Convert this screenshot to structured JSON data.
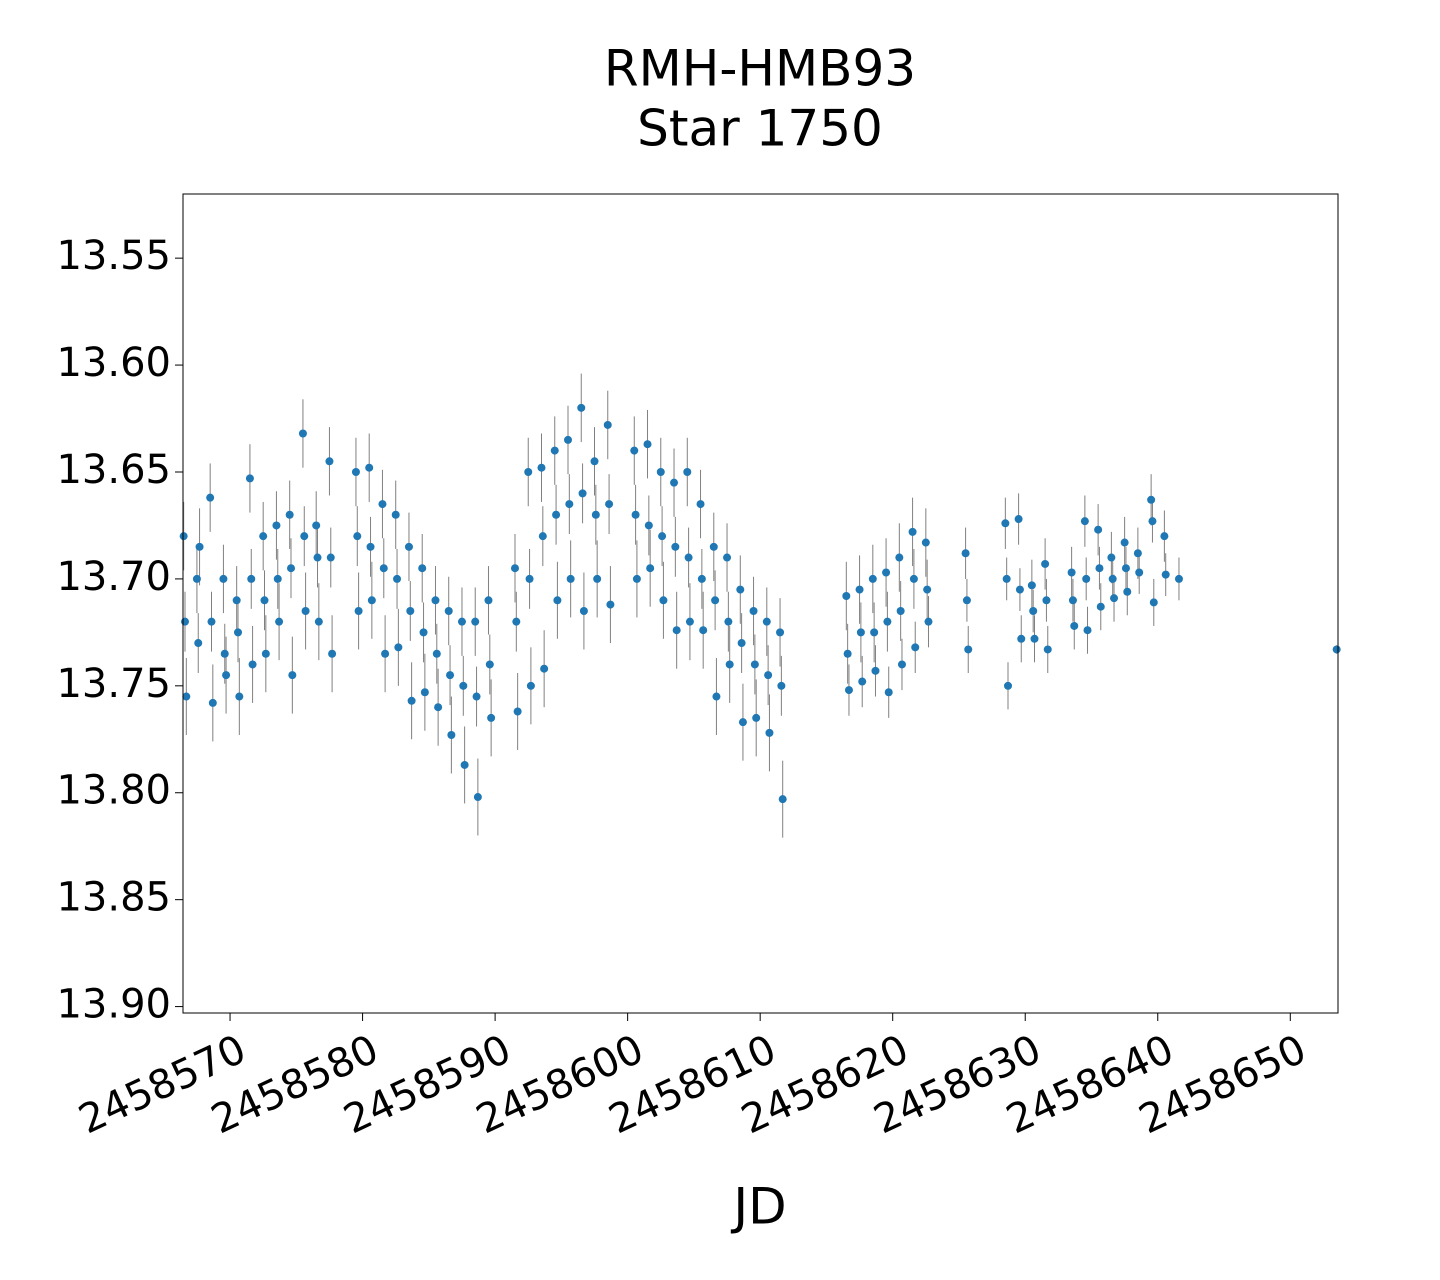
{
  "chart_data": {
    "type": "errorbar-scatter",
    "title": "RMH-HMB93",
    "subtitle": "Star 1750",
    "x_label": "JD",
    "xlim": [
      2458566.45,
      2458653.6
    ],
    "ylim": [
      13.903,
      13.52
    ],
    "y_inverted": true,
    "xticks": [
      2458570,
      2458580,
      2458590,
      2458600,
      2458610,
      2458620,
      2458630,
      2458640,
      2458650
    ],
    "yticks": [
      13.55,
      {
        "value": 13.6,
        "label": "13.60"
      },
      13.65,
      {
        "value": 13.7,
        "label": "13.70"
      },
      13.75,
      {
        "value": 13.8,
        "label": "13.80"
      },
      13.85,
      {
        "value": 13.9,
        "label": "13.90"
      }
    ],
    "grid": false,
    "series": [
      {
        "color": "#1f77b4",
        "error_color": "#808080",
        "x": [
          2458566.5,
          2458566.6,
          2458566.7,
          2458567.5,
          2458567.6,
          2458567.7,
          2458568.5,
          2458568.6,
          2458568.7,
          2458569.5,
          2458569.6,
          2458569.7,
          2458570.5,
          2458570.6,
          2458570.7,
          2458571.5,
          2458571.6,
          2458571.7,
          2458572.5,
          2458572.6,
          2458572.7,
          2458573.5,
          2458573.6,
          2458573.7,
          2458574.5,
          2458574.6,
          2458574.7,
          2458575.5,
          2458575.6,
          2458575.7,
          2458576.5,
          2458576.6,
          2458576.7,
          2458577.5,
          2458577.6,
          2458577.7,
          2458579.5,
          2458579.6,
          2458579.7,
          2458580.5,
          2458580.6,
          2458580.7,
          2458581.5,
          2458581.6,
          2458581.7,
          2458582.5,
          2458582.6,
          2458582.7,
          2458583.5,
          2458583.6,
          2458583.7,
          2458584.5,
          2458584.6,
          2458584.7,
          2458585.5,
          2458585.6,
          2458585.7,
          2458586.5,
          2458586.6,
          2458586.7,
          2458587.5,
          2458587.6,
          2458587.7,
          2458588.5,
          2458588.6,
          2458588.7,
          2458589.5,
          2458589.6,
          2458589.7,
          2458591.5,
          2458591.6,
          2458591.7,
          2458592.5,
          2458592.6,
          2458592.7,
          2458593.5,
          2458593.6,
          2458593.7,
          2458594.5,
          2458594.6,
          2458594.7,
          2458595.5,
          2458595.6,
          2458595.7,
          2458596.5,
          2458596.6,
          2458596.7,
          2458597.5,
          2458597.6,
          2458597.7,
          2458598.5,
          2458598.6,
          2458598.7,
          2458600.5,
          2458600.6,
          2458600.7,
          2458601.5,
          2458601.6,
          2458601.7,
          2458602.5,
          2458602.6,
          2458602.7,
          2458603.5,
          2458603.6,
          2458603.7,
          2458604.5,
          2458604.6,
          2458604.7,
          2458605.5,
          2458605.6,
          2458605.7,
          2458606.5,
          2458606.6,
          2458606.7,
          2458607.5,
          2458607.6,
          2458607.7,
          2458608.5,
          2458608.6,
          2458608.7,
          2458609.5,
          2458609.6,
          2458609.7,
          2458610.5,
          2458610.6,
          2458610.7,
          2458611.5,
          2458611.6,
          2458611.7,
          2458616.5,
          2458616.6,
          2458616.7,
          2458617.5,
          2458617.6,
          2458617.7,
          2458618.5,
          2458618.6,
          2458618.7,
          2458619.5,
          2458619.6,
          2458619.7,
          2458620.5,
          2458620.6,
          2458620.7,
          2458621.5,
          2458621.6,
          2458621.7,
          2458622.5,
          2458622.6,
          2458622.7,
          2458625.5,
          2458625.6,
          2458625.7,
          2458628.5,
          2458628.6,
          2458628.7,
          2458629.5,
          2458629.6,
          2458629.7,
          2458630.5,
          2458630.6,
          2458630.7,
          2458631.5,
          2458631.6,
          2458631.7,
          2458633.5,
          2458633.6,
          2458633.7,
          2458634.5,
          2458634.6,
          2458634.7,
          2458635.5,
          2458635.6,
          2458635.7,
          2458636.5,
          2458636.6,
          2458636.7,
          2458637.5,
          2458637.6,
          2458637.7,
          2458638.5,
          2458638.6,
          2458639.5,
          2458639.6,
          2458639.7,
          2458640.5,
          2458640.6,
          2458641.6,
          2458653.5
        ],
        "values": [
          13.68,
          13.72,
          13.755,
          13.7,
          13.73,
          13.685,
          13.662,
          13.72,
          13.758,
          13.7,
          13.735,
          13.745,
          13.71,
          13.725,
          13.755,
          13.653,
          13.7,
          13.74,
          13.68,
          13.71,
          13.735,
          13.675,
          13.7,
          13.72,
          13.67,
          13.695,
          13.745,
          13.632,
          13.68,
          13.715,
          13.675,
          13.69,
          13.72,
          13.645,
          13.69,
          13.735,
          13.65,
          13.68,
          13.715,
          13.648,
          13.685,
          13.71,
          13.665,
          13.695,
          13.735,
          13.67,
          13.7,
          13.732,
          13.685,
          13.715,
          13.757,
          13.695,
          13.725,
          13.753,
          13.71,
          13.735,
          13.76,
          13.715,
          13.745,
          13.773,
          13.72,
          13.75,
          13.787,
          13.72,
          13.755,
          13.802,
          13.71,
          13.74,
          13.765,
          13.695,
          13.72,
          13.762,
          13.65,
          13.7,
          13.75,
          13.648,
          13.68,
          13.742,
          13.64,
          13.67,
          13.71,
          13.635,
          13.665,
          13.7,
          13.62,
          13.66,
          13.715,
          13.645,
          13.67,
          13.7,
          13.628,
          13.665,
          13.712,
          13.64,
          13.67,
          13.7,
          13.637,
          13.675,
          13.695,
          13.65,
          13.68,
          13.71,
          13.655,
          13.685,
          13.724,
          13.65,
          13.69,
          13.72,
          13.665,
          13.7,
          13.724,
          13.685,
          13.71,
          13.755,
          13.69,
          13.72,
          13.74,
          13.705,
          13.73,
          13.767,
          13.715,
          13.74,
          13.765,
          13.72,
          13.745,
          13.772,
          13.725,
          13.75,
          13.803,
          13.708,
          13.735,
          13.752,
          13.705,
          13.725,
          13.748,
          13.7,
          13.725,
          13.743,
          13.697,
          13.72,
          13.753,
          13.69,
          13.715,
          13.74,
          13.678,
          13.7,
          13.732,
          13.683,
          13.705,
          13.72,
          13.688,
          13.71,
          13.733,
          13.674,
          13.7,
          13.75,
          13.672,
          13.705,
          13.728,
          13.703,
          13.715,
          13.728,
          13.693,
          13.71,
          13.733,
          13.697,
          13.71,
          13.722,
          13.673,
          13.7,
          13.724,
          13.677,
          13.695,
          13.713,
          13.69,
          13.7,
          13.709,
          13.683,
          13.695,
          13.706,
          13.688,
          13.697,
          13.663,
          13.673,
          13.711,
          13.68,
          13.698,
          13.7,
          13.733
        ],
        "errors": [
          0.016,
          0.014,
          0.018,
          0.016,
          0.014,
          0.018,
          0.016,
          0.014,
          0.018,
          0.016,
          0.014,
          0.018,
          0.016,
          0.014,
          0.018,
          0.016,
          0.014,
          0.018,
          0.016,
          0.014,
          0.018,
          0.016,
          0.014,
          0.018,
          0.016,
          0.014,
          0.018,
          0.016,
          0.014,
          0.018,
          0.016,
          0.014,
          0.018,
          0.016,
          0.014,
          0.018,
          0.016,
          0.014,
          0.018,
          0.016,
          0.014,
          0.018,
          0.016,
          0.014,
          0.018,
          0.016,
          0.014,
          0.018,
          0.016,
          0.014,
          0.018,
          0.016,
          0.014,
          0.018,
          0.016,
          0.014,
          0.018,
          0.016,
          0.014,
          0.018,
          0.016,
          0.014,
          0.018,
          0.016,
          0.014,
          0.018,
          0.016,
          0.014,
          0.018,
          0.016,
          0.014,
          0.018,
          0.016,
          0.014,
          0.018,
          0.016,
          0.014,
          0.018,
          0.016,
          0.014,
          0.018,
          0.016,
          0.014,
          0.018,
          0.016,
          0.014,
          0.018,
          0.016,
          0.014,
          0.018,
          0.016,
          0.014,
          0.018,
          0.016,
          0.014,
          0.018,
          0.016,
          0.014,
          0.018,
          0.016,
          0.014,
          0.018,
          0.016,
          0.014,
          0.018,
          0.016,
          0.014,
          0.018,
          0.016,
          0.014,
          0.018,
          0.016,
          0.014,
          0.018,
          0.016,
          0.014,
          0.018,
          0.016,
          0.014,
          0.018,
          0.016,
          0.014,
          0.018,
          0.016,
          0.014,
          0.018,
          0.016,
          0.014,
          0.018,
          0.016,
          0.014,
          0.012,
          0.016,
          0.014,
          0.012,
          0.016,
          0.014,
          0.012,
          0.016,
          0.014,
          0.012,
          0.016,
          0.014,
          0.012,
          0.016,
          0.014,
          0.012,
          0.016,
          0.014,
          0.012,
          0.012,
          0.01,
          0.011,
          0.012,
          0.01,
          0.011,
          0.012,
          0.01,
          0.011,
          0.012,
          0.01,
          0.011,
          0.012,
          0.01,
          0.011,
          0.012,
          0.01,
          0.011,
          0.012,
          0.01,
          0.011,
          0.012,
          0.01,
          0.011,
          0.012,
          0.01,
          0.011,
          0.012,
          0.01,
          0.011,
          0.012,
          0.01,
          0.012,
          0.01,
          0.011,
          0.012,
          0.01,
          0.01,
          0.002
        ]
      }
    ]
  }
}
